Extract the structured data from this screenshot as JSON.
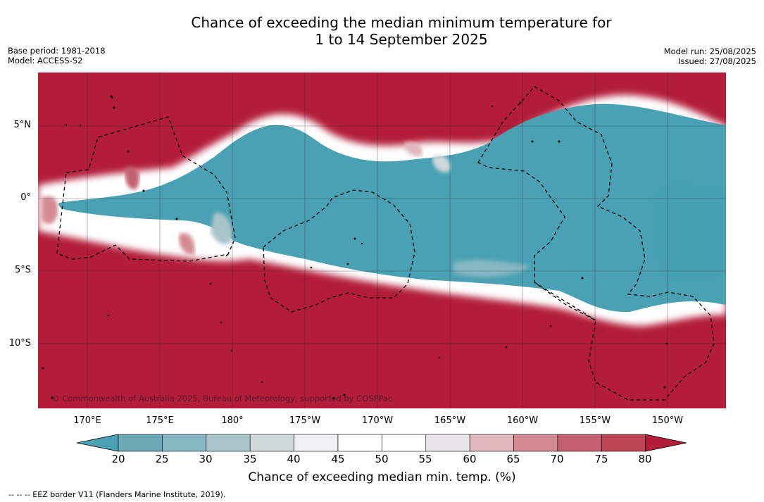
{
  "title_line1": "Chance of exceeding the median minimum temperature for",
  "title_line2": "1 to 14 September 2025",
  "base_period": "Base period: 1981-2018",
  "model": "Model: ACCESS-S2",
  "model_run": "Model run: 25/08/2025",
  "issued": "Issued: 27/08/2025",
  "copyright": "© Commonwealth of Australia 2025, Bureau of Meteorology, supported by COSPPac",
  "lat_labels": [
    "5°N",
    "0°",
    "5°S",
    "10°S"
  ],
  "lon_labels": [
    "170°E",
    "175°E",
    "180°",
    "175°W",
    "170°W",
    "165°W",
    "160°W",
    "155°W",
    "150°W"
  ],
  "colorbar": {
    "ticks": [
      "20",
      "25",
      "30",
      "35",
      "40",
      "45",
      "50",
      "55",
      "60",
      "65",
      "70",
      "75",
      "80"
    ],
    "label": "Chance of exceeding median min. temp. (%)",
    "colors": [
      "#4aa1b3",
      "#6aa9b5",
      "#86b7c2",
      "#a9c5ca",
      "#cfd9dc",
      "#edf1f3",
      "#ffffff",
      "#ffffff",
      "#e7e5e7",
      "#e0b8be",
      "#d48a93",
      "#c4606f",
      "#bd4455",
      "#b31d39"
    ]
  },
  "footnote": "-- -- -- EEZ border V11 (Flanders Marine Institute, 2019).",
  "colors": {
    "high": "#b31d39",
    "low": "#4aa1b3"
  }
}
